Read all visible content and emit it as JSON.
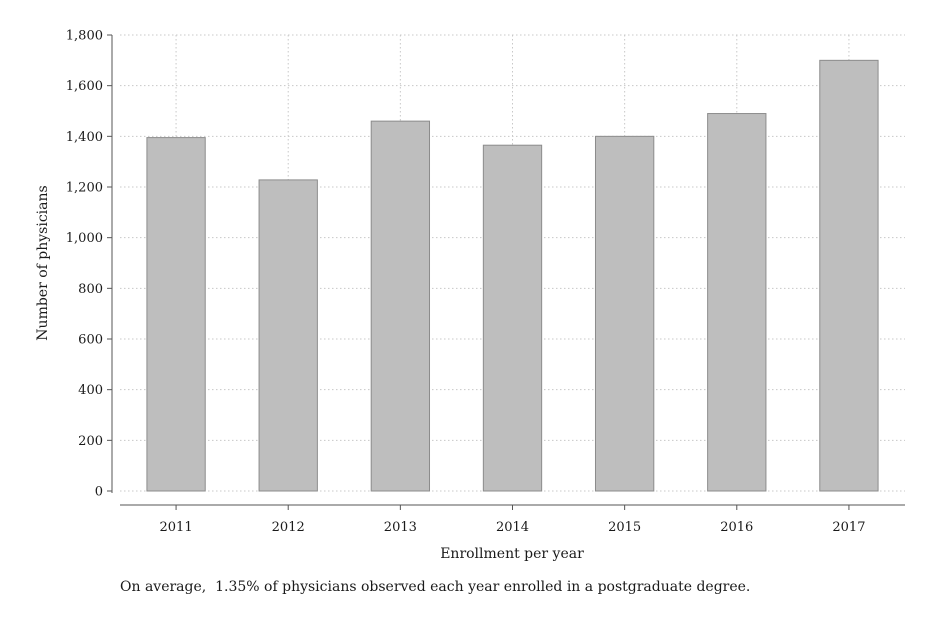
{
  "chart_data": {
    "type": "bar",
    "categories": [
      "2011",
      "2012",
      "2013",
      "2014",
      "2015",
      "2016",
      "2017"
    ],
    "values": [
      1395,
      1228,
      1460,
      1365,
      1400,
      1490,
      1700
    ],
    "xlabel": "Enrollment per year",
    "ylabel": "Number of physicians",
    "ylim": [
      0,
      1800
    ],
    "yticks": [
      0,
      200,
      400,
      600,
      800,
      1000,
      1200,
      1400,
      1600,
      1800
    ],
    "ytick_labels": [
      "0",
      "200",
      "400",
      "600",
      "800",
      "1,000",
      "1,200",
      "1,400",
      "1,600",
      "1,800"
    ],
    "grid": true,
    "bar_color": "#bebebe",
    "bar_edge_color": "#8c8c8c",
    "note": "On average,  1.35% of physicians observed each year enrolled in a postgraduate degree."
  }
}
